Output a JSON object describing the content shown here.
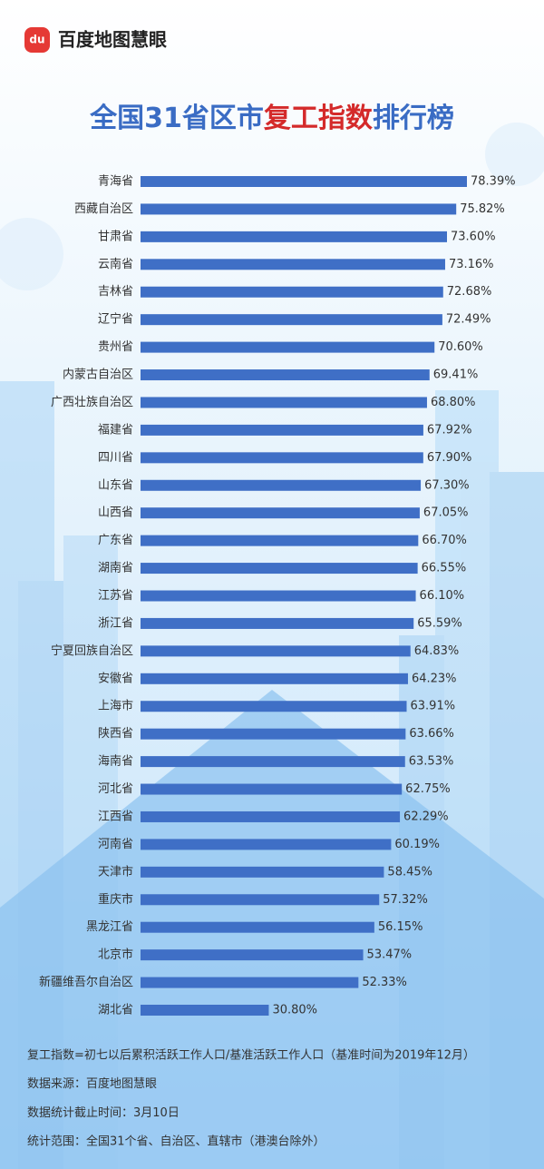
{
  "brand": {
    "icon_text": "du",
    "name": "百度地图慧眼"
  },
  "chart_data": {
    "type": "hbar",
    "title": [
      {
        "text": "全国31省区市",
        "color": "#3a6cc4"
      },
      {
        "text": "复工指数",
        "color": "#d42a2a"
      },
      {
        "text": "排行榜",
        "color": "#3a6cc4"
      }
    ],
    "color": "#3f6fc6",
    "categories": [
      "青海省",
      "西藏自治区",
      "甘肃省",
      "云南省",
      "吉林省",
      "辽宁省",
      "贵州省",
      "内蒙古自治区",
      "广西壮族自治区",
      "福建省",
      "四川省",
      "山东省",
      "山西省",
      "广东省",
      "湖南省",
      "江苏省",
      "浙江省",
      "宁夏回族自治区",
      "安徽省",
      "上海市",
      "陕西省",
      "海南省",
      "河北省",
      "江西省",
      "河南省",
      "天津市",
      "重庆市",
      "黑龙江省",
      "北京市",
      "新疆维吾尔自治区",
      "湖北省"
    ],
    "values": [
      78.39,
      75.82,
      73.6,
      73.16,
      72.68,
      72.49,
      70.6,
      69.41,
      68.8,
      67.92,
      67.9,
      67.3,
      67.05,
      66.7,
      66.55,
      66.1,
      65.59,
      64.83,
      64.23,
      63.91,
      63.66,
      63.53,
      62.75,
      62.29,
      60.19,
      58.45,
      57.32,
      56.15,
      53.47,
      52.33,
      30.8
    ],
    "value_labels": [
      "78.39%",
      "75.82%",
      "73.60%",
      "73.16%",
      "72.68%",
      "72.49%",
      "70.60%",
      "69.41%",
      "68.80%",
      "67.92%",
      "67.90%",
      "67.30%",
      "67.05%",
      "66.70%",
      "66.55%",
      "66.10%",
      "65.59%",
      "64.83%",
      "64.23%",
      "63.91%",
      "63.66%",
      "63.53%",
      "62.75%",
      "62.29%",
      "60.19%",
      "58.45%",
      "57.32%",
      "56.15%",
      "53.47%",
      "52.33%",
      "30.80%"
    ],
    "footnotes": [
      "复工指数=初七以后累积活跃工作人口/基准活跃工作人口（基准时间为2019年12月）",
      "数据来源：百度地图慧眼",
      "数据统计截止时间：3月10日",
      "统计范围：全国31个省、自治区、直辖市（港澳台除外）"
    ]
  }
}
